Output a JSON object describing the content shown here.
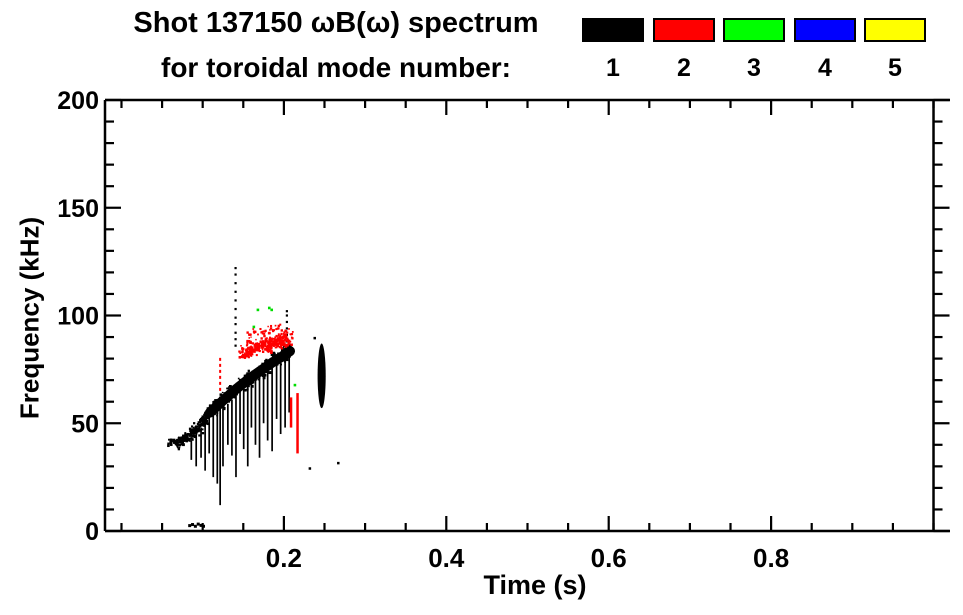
{
  "header": {
    "title_line1": "Shot 137150 ωB(ω) spectrum",
    "title_line2": "for toroidal mode number:"
  },
  "legend": {
    "items": [
      {
        "label": "1",
        "color": "#000000"
      },
      {
        "label": "2",
        "color": "#ff0000"
      },
      {
        "label": "3",
        "color": "#00ff00"
      },
      {
        "label": "4",
        "color": "#0000ff"
      },
      {
        "label": "5",
        "color": "#ffff00"
      }
    ]
  },
  "axes": {
    "xlabel": "Time (s)",
    "ylabel": "Frequency (kHz)"
  },
  "chart_data": {
    "type": "scatter",
    "title": "Shot 137150 ωB(ω) spectrum for toroidal mode number: 1 2 3 4 5",
    "xlabel": "Time (s)",
    "ylabel": "Frequency (kHz)",
    "xlim": [
      -0.0203,
      1.0203
    ],
    "ylim": [
      0,
      200
    ],
    "x_major_ticks": [
      0.2,
      0.4,
      0.6,
      0.8
    ],
    "x_major_tick_labels": [
      "0.2",
      "0.4",
      "0.6",
      "0.8"
    ],
    "x_minor_step": 0.05,
    "y_major_ticks": [
      0,
      50,
      100,
      150,
      200
    ],
    "y_major_tick_labels": [
      "0",
      "50",
      "100",
      "150",
      "200"
    ],
    "y_minor_step": 10,
    "right_axis_at_x": 1.0,
    "grid": false,
    "legend_position": "top-right",
    "series": [
      {
        "name": "toroidal mode n=1",
        "color": "#000000"
      },
      {
        "name": "toroidal mode n=2",
        "color": "#ff0000"
      },
      {
        "name": "toroidal mode n=3",
        "color": "#00dd00"
      },
      {
        "name": "toroidal mode n=4",
        "color": "#0000ff"
      },
      {
        "name": "toroidal mode n=5",
        "color": "#ffff00"
      }
    ],
    "features": [
      {
        "name": "n1-bottom-dashes",
        "mode": 1,
        "color": "#000000",
        "kind": "dots",
        "size": 3,
        "points": [
          [
            0.084,
            2.5
          ],
          [
            0.0875,
            3
          ],
          [
            0.091,
            2.2
          ],
          [
            0.0945,
            3.2
          ],
          [
            0.098,
            2.6
          ],
          [
            0.101,
            2.2
          ]
        ]
      },
      {
        "name": "n1-early-cluster-a",
        "mode": 1,
        "color": "#000000",
        "kind": "cluster",
        "seg": [
          [
            0.058,
            41
          ],
          [
            0.07,
            41.5
          ]
        ],
        "jt": 0.002,
        "jf": 1.8,
        "n": 28,
        "size": 2
      },
      {
        "name": "n1-early-cluster-b",
        "mode": 1,
        "color": "#000000",
        "kind": "cluster",
        "seg": [
          [
            0.068,
            40
          ],
          [
            0.083,
            44
          ]
        ],
        "jt": 0.003,
        "jf": 2.6,
        "n": 70,
        "size": 2.2
      },
      {
        "name": "n1-early-cluster-c",
        "mode": 1,
        "color": "#000000",
        "kind": "cluster",
        "seg": [
          [
            0.087,
            44.5
          ],
          [
            0.103,
            51
          ]
        ],
        "jt": 0.003,
        "jf": 3.0,
        "n": 90,
        "size": 2.2
      },
      {
        "name": "n1-early-cluster-d",
        "mode": 1,
        "color": "#000000",
        "kind": "cluster",
        "seg": [
          [
            0.1,
            52
          ],
          [
            0.114,
            56
          ]
        ],
        "jt": 0.0025,
        "jf": 2.6,
        "n": 60,
        "size": 2.2
      },
      {
        "name": "n1-early-spikes",
        "mode": 1,
        "color": "#000000",
        "kind": "spikes",
        "width": 1.7,
        "segs": [
          [
            0.086,
            42,
            33
          ],
          [
            0.092,
            45,
            30
          ],
          [
            0.098,
            48,
            34
          ],
          [
            0.103,
            51,
            28
          ],
          [
            0.108,
            53,
            36
          ],
          [
            0.113,
            55,
            25
          ],
          [
            0.118,
            56,
            22
          ],
          [
            0.1215,
            57,
            12
          ],
          [
            0.125,
            58,
            30
          ]
        ]
      },
      {
        "name": "n1-main-band",
        "mode": 1,
        "color": "#000000",
        "kind": "band",
        "line": [
          [
            0.109,
            55
          ],
          [
            0.125,
            60.5
          ],
          [
            0.14,
            65.5
          ],
          [
            0.155,
            70
          ],
          [
            0.17,
            74
          ],
          [
            0.185,
            78
          ],
          [
            0.198,
            81
          ],
          [
            0.2075,
            83.5
          ]
        ],
        "stroke": 10,
        "n": 340,
        "jf": 4.6,
        "jt": 0.0022,
        "size": 2
      },
      {
        "name": "n1-band-spikes",
        "mode": 1,
        "color": "#000000",
        "kind": "spikes",
        "width": 1.7,
        "segs": [
          [
            0.131,
            59,
            40
          ],
          [
            0.136,
            61,
            35
          ],
          [
            0.141,
            63,
            25
          ],
          [
            0.146,
            65,
            45
          ],
          [
            0.1505,
            67,
            38
          ],
          [
            0.1555,
            69,
            30
          ],
          [
            0.16,
            71,
            48
          ],
          [
            0.165,
            72,
            40
          ],
          [
            0.17,
            74,
            34
          ],
          [
            0.175,
            75,
            50
          ],
          [
            0.18,
            77,
            42
          ],
          [
            0.1855,
            78,
            37
          ],
          [
            0.191,
            79,
            52
          ],
          [
            0.196,
            80,
            45
          ],
          [
            0.2015,
            81,
            48
          ],
          [
            0.2065,
            82,
            55
          ]
        ]
      },
      {
        "name": "n1-dotted-column-a",
        "mode": 1,
        "color": "#000000",
        "kind": "column",
        "t": 0.1405,
        "size": 2.2,
        "f": [
          86,
          89,
          92,
          96,
          99,
          103,
          107,
          111,
          115,
          119,
          122
        ]
      },
      {
        "name": "n1-dotted-column-b",
        "mode": 1,
        "color": "#000000",
        "kind": "column",
        "t": 0.2037,
        "size": 2.2,
        "f": [
          86,
          88,
          91,
          94,
          97,
          100,
          102
        ]
      },
      {
        "name": "n1-late-blob",
        "mode": 1,
        "color": "#000000",
        "kind": "blob",
        "t": 0.2465,
        "f_center": 72,
        "f_half": 15,
        "t_half": 0.005
      },
      {
        "name": "n1-specks",
        "mode": 1,
        "color": "#000000",
        "kind": "dots",
        "size": 2.5,
        "points": [
          [
            0.232,
            29
          ],
          [
            0.267,
            31.5
          ],
          [
            0.238,
            89.5
          ]
        ]
      },
      {
        "name": "n2-cluster",
        "mode": 2,
        "color": "#ff0000",
        "kind": "cluster",
        "seg": [
          [
            0.147,
            83
          ],
          [
            0.207,
            89.5
          ]
        ],
        "jt": 0.004,
        "jf": 4.4,
        "n": 330,
        "size": 2
      },
      {
        "name": "n2-cluster-halo",
        "mode": 2,
        "color": "#ff0000",
        "kind": "cluster",
        "seg": [
          [
            0.155,
            91
          ],
          [
            0.2,
            94
          ]
        ],
        "jt": 0.004,
        "jf": 3.2,
        "n": 45,
        "size": 1.8
      },
      {
        "name": "n2-vline-dashed",
        "mode": 2,
        "color": "#ff0000",
        "kind": "vline",
        "t": 0.1215,
        "f1": 65,
        "f2": 81,
        "width": 2,
        "dash": "3,3"
      },
      {
        "name": "n2-vline-a",
        "mode": 2,
        "color": "#ff0000",
        "kind": "vline",
        "t": 0.2088,
        "f1": 48,
        "f2": 62,
        "width": 2.5
      },
      {
        "name": "n2-vline-b",
        "mode": 2,
        "color": "#ff0000",
        "kind": "vline",
        "t": 0.2168,
        "f1": 36,
        "f2": 64,
        "width": 2.5
      },
      {
        "name": "n3-dots",
        "mode": 3,
        "color": "#00dd00",
        "kind": "dots",
        "size": 2.6,
        "points": [
          [
            0.163,
            94.7
          ],
          [
            0.168,
            102.6
          ],
          [
            0.182,
            103.5
          ],
          [
            0.185,
            102.6
          ],
          [
            0.2136,
            67.7
          ]
        ]
      }
    ]
  }
}
